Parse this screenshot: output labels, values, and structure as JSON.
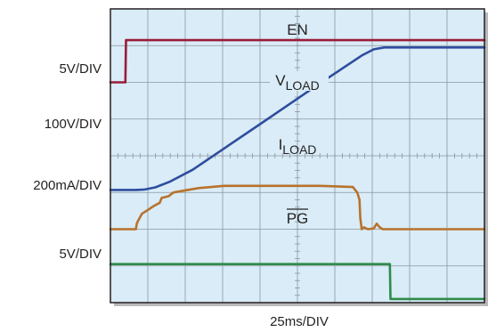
{
  "chart_data": {
    "type": "line",
    "title": "",
    "xlabel": "25ms/DIV",
    "time_per_div_ms": 25,
    "x_divisions": 10,
    "y_divisions": 8,
    "grid": true,
    "colors": {
      "background": "#d9ecf7",
      "grid": "#8a97a2",
      "frame": "#231f20",
      "EN": "#9b1b3a",
      "VLOAD": "#2f4d9e",
      "ILOAD": "#b8722c",
      "PG": "#2e8b4a"
    },
    "scale_labels": [
      "5V/DIV",
      "100V/DIV",
      "200mA/DIV",
      "5V/DIV"
    ],
    "series": [
      {
        "key": "EN",
        "name": "EN",
        "name_sub": "",
        "overline": false,
        "color": "#9b1b3a",
        "x_ms": [
          0,
          10.0,
          10.4,
          250
        ],
        "y_div": [
          6.0,
          6.0,
          7.15,
          7.15
        ]
      },
      {
        "key": "VLOAD",
        "name": "V",
        "name_sub": "LOAD",
        "overline": false,
        "color": "#2f4d9e",
        "x_ms": [
          0,
          17,
          23,
          30,
          40,
          55,
          100,
          140,
          168,
          176,
          183,
          250
        ],
        "y_div": [
          3.07,
          3.07,
          3.08,
          3.14,
          3.3,
          3.62,
          4.86,
          5.97,
          6.73,
          6.9,
          6.95,
          6.95
        ]
      },
      {
        "key": "ILOAD",
        "name": "I",
        "name_sub": "LOAD",
        "overline": false,
        "color": "#b8722c",
        "x_ms": [
          0,
          17,
          17.6,
          18.5,
          21,
          26,
          28.5,
          33,
          34.2,
          39,
          42,
          49,
          59,
          76,
          95,
          140,
          162,
          165,
          166.5,
          167,
          168,
          169.5,
          172,
          176,
          178,
          180,
          182,
          185,
          190,
          250
        ],
        "y_div": [
          2.0,
          2.0,
          2.15,
          2.23,
          2.42,
          2.55,
          2.62,
          2.72,
          2.85,
          2.9,
          3.0,
          3.05,
          3.12,
          3.18,
          3.18,
          3.18,
          3.15,
          3.0,
          2.8,
          2.3,
          2.0,
          2.05,
          2.0,
          2.02,
          2.15,
          2.05,
          2.0,
          2.0,
          2.0,
          2.0
        ]
      },
      {
        "key": "PG",
        "name": "PG",
        "name_sub": "",
        "overline": true,
        "color": "#2e8b4a",
        "x_ms": [
          0,
          186.8,
          187.2,
          250
        ],
        "y_div": [
          1.05,
          1.05,
          0.1,
          0.1
        ]
      }
    ]
  }
}
